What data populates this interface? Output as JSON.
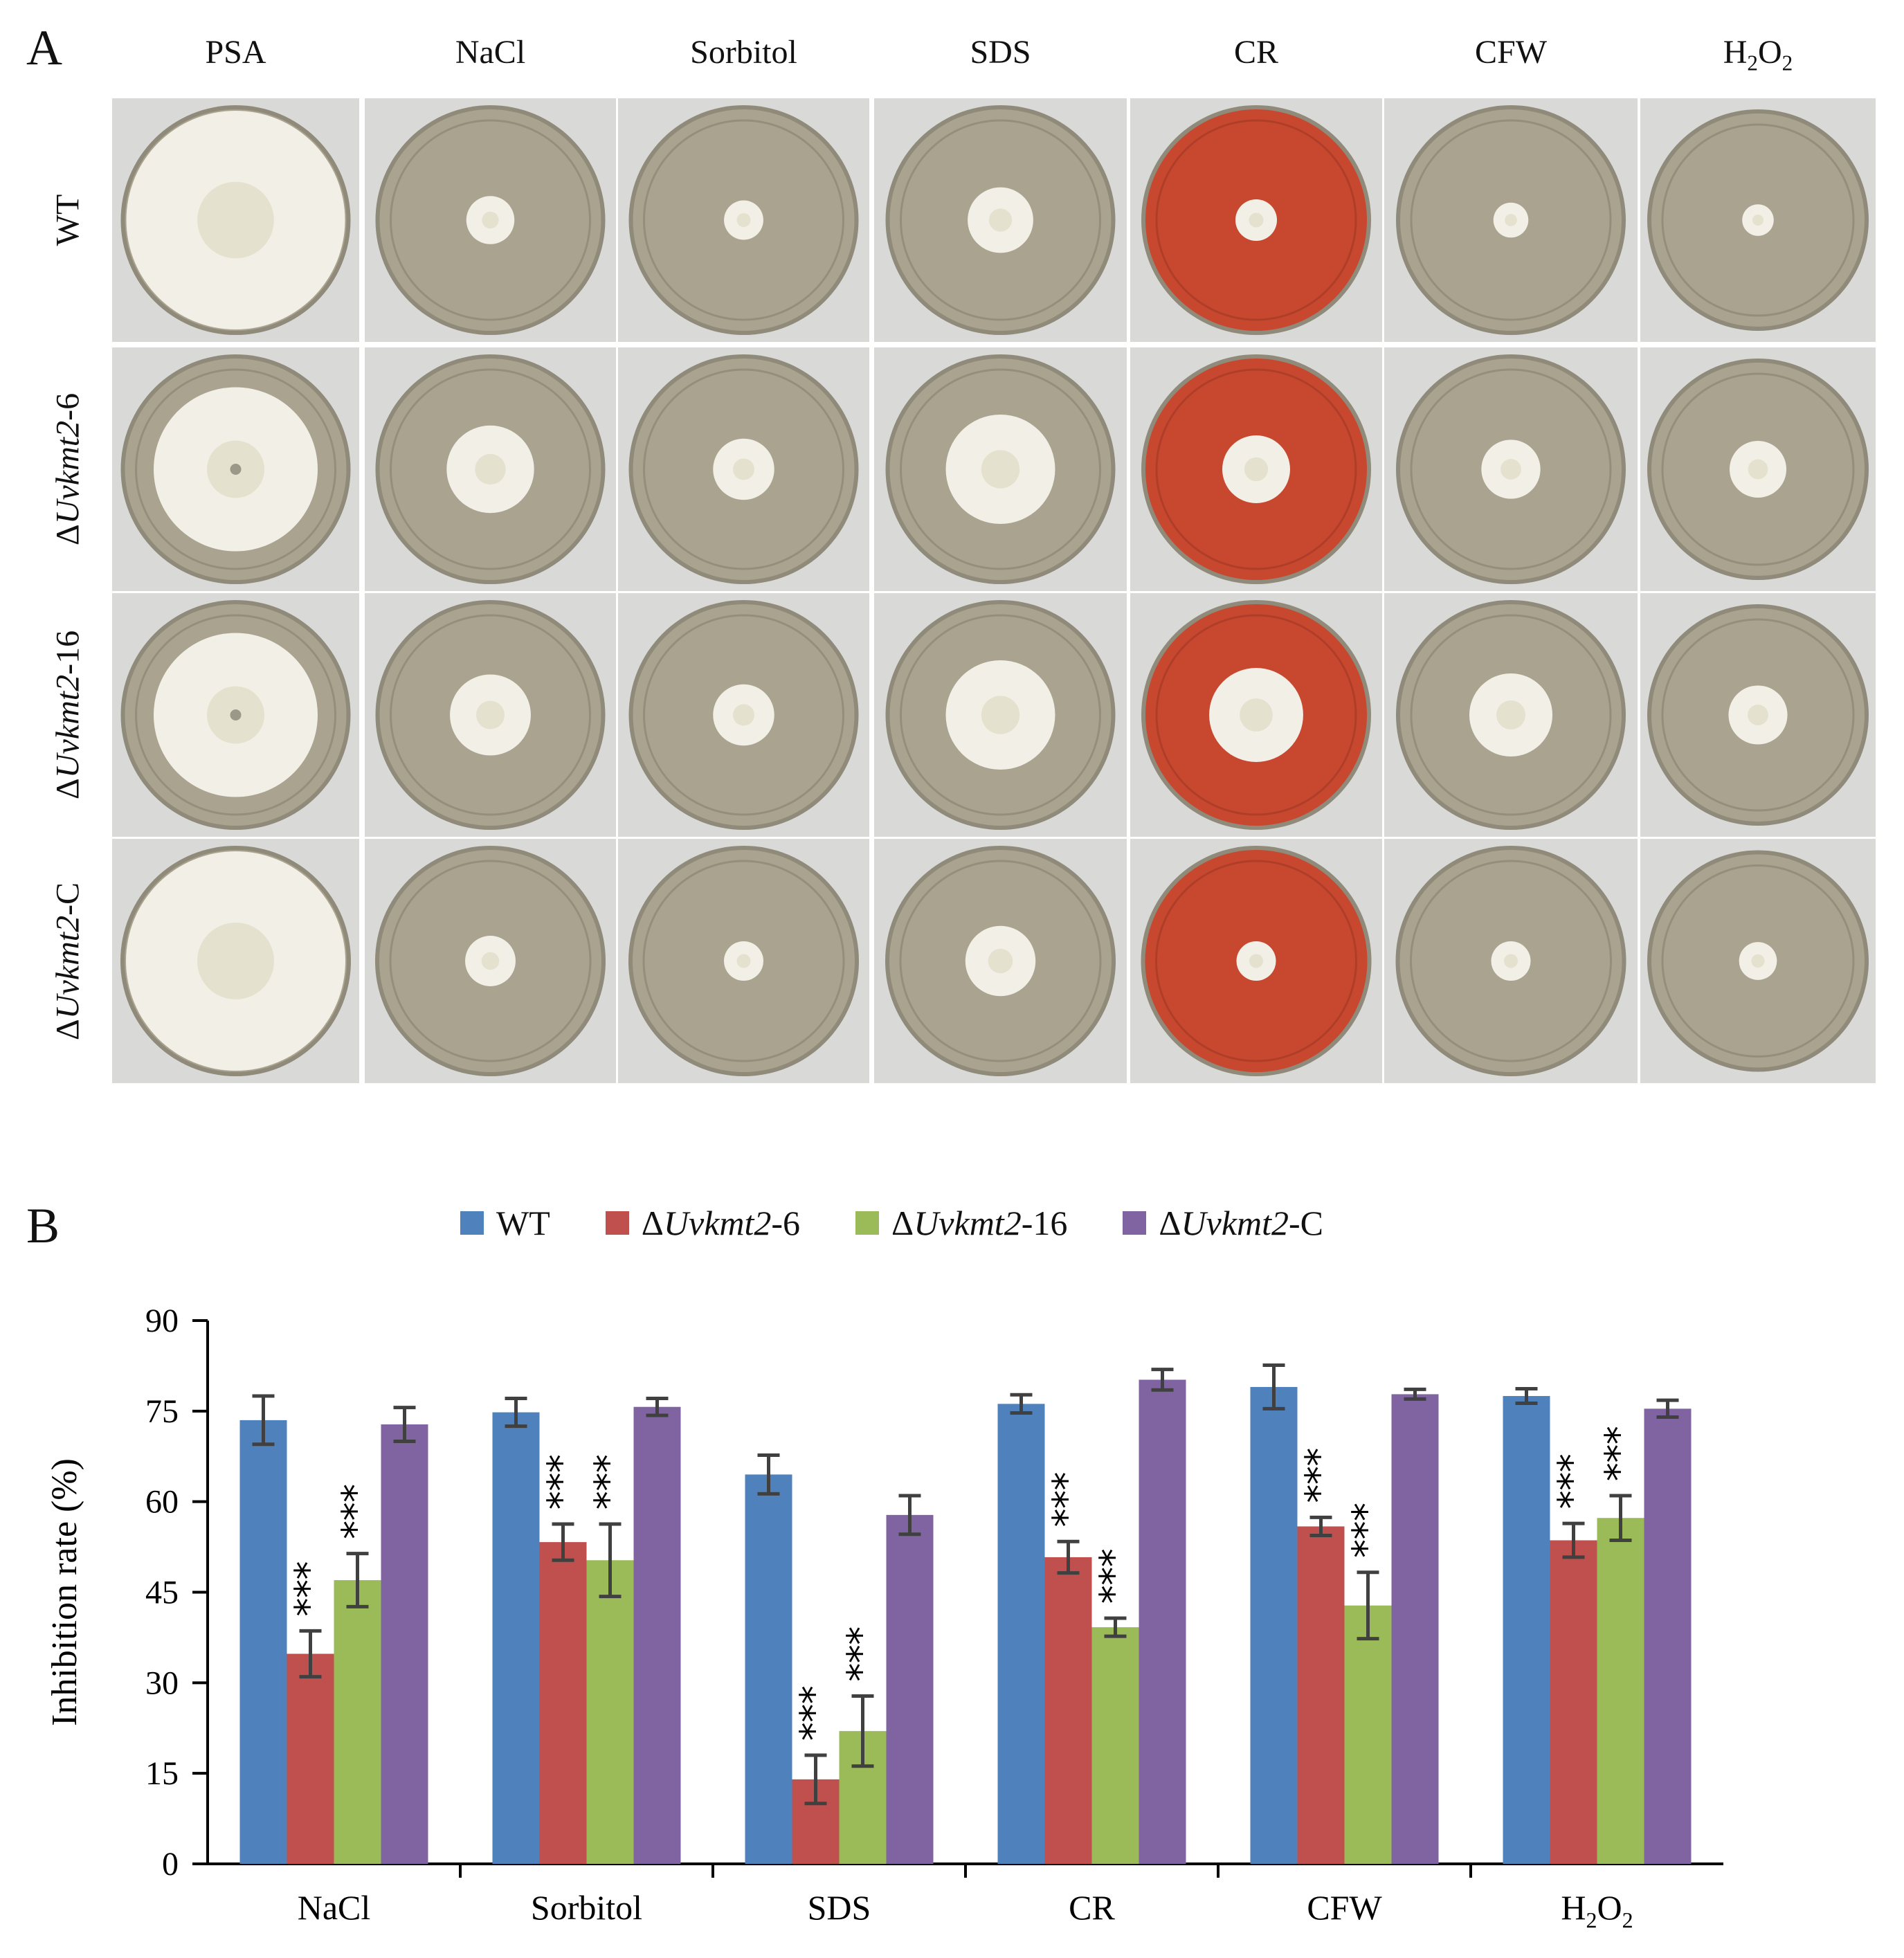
{
  "panel_a": {
    "letter": "A",
    "columns": [
      "PSA",
      "NaCl",
      "Sorbitol",
      "SDS",
      "CR",
      "CFW",
      "H2O2"
    ],
    "rows": [
      {
        "prefix": "",
        "italic": "",
        "suffix": "WT"
      },
      {
        "prefix": "Δ",
        "italic": "Uvkmt2",
        "suffix": "-6"
      },
      {
        "prefix": "Δ",
        "italic": "Uvkmt2",
        "suffix": "-16"
      },
      {
        "prefix": "Δ",
        "italic": "Uvkmt2",
        "suffix": "-C"
      }
    ],
    "colony_diameter_fraction": [
      [
        1.0,
        0.22,
        0.18,
        0.3,
        0.19,
        0.16,
        0.15
      ],
      [
        0.75,
        0.4,
        0.28,
        0.5,
        0.31,
        0.27,
        0.27
      ],
      [
        0.75,
        0.37,
        0.28,
        0.5,
        0.43,
        0.38,
        0.28
      ],
      [
        1.0,
        0.23,
        0.18,
        0.32,
        0.18,
        0.18,
        0.18
      ]
    ],
    "colors": {
      "agar": "#a9a38f",
      "congo_red_agar": "#c8472f",
      "background": "#d9dad7",
      "colony": "#f1efe6"
    }
  },
  "panel_b": {
    "letter": "B",
    "legend": [
      {
        "prefix": "",
        "italic": "",
        "suffix": "WT",
        "color": "#4f81bd"
      },
      {
        "prefix": "Δ",
        "italic": "Uvkmt2",
        "suffix": "-6",
        "color": "#c0504d"
      },
      {
        "prefix": "Δ",
        "italic": "Uvkmt2",
        "suffix": "-16",
        "color": "#9bbb59"
      },
      {
        "prefix": "Δ",
        "italic": "Uvkmt2",
        "suffix": "-C",
        "color": "#8064a2"
      }
    ]
  },
  "chart_data": {
    "type": "bar",
    "categories": [
      "NaCl",
      "Sorbitol",
      "SDS",
      "CR",
      "CFW",
      "H2O2"
    ],
    "ylabel": "Inhibition rate (%)",
    "xlabel": "",
    "ylim": [
      0,
      90
    ],
    "yticks": [
      0,
      15,
      30,
      45,
      60,
      75,
      90
    ],
    "series": [
      {
        "name": "WT",
        "color": "#4f81bd",
        "values": [
          73.5,
          74.8,
          64.5,
          76.2,
          79.0,
          77.5
        ],
        "errors": [
          4.0,
          2.3,
          3.2,
          1.5,
          3.6,
          1.2
        ]
      },
      {
        "name": "ΔUvkmt2-6",
        "color": "#c0504d",
        "values": [
          34.8,
          53.3,
          14.0,
          50.8,
          55.9,
          53.6
        ],
        "errors": [
          3.8,
          3.0,
          4.0,
          2.6,
          1.5,
          2.8
        ]
      },
      {
        "name": "ΔUvkmt2-16",
        "color": "#9bbb59",
        "values": [
          47.0,
          50.3,
          22.0,
          39.2,
          42.8,
          57.3
        ],
        "errors": [
          4.4,
          6.0,
          5.8,
          1.5,
          5.5,
          3.7
        ]
      },
      {
        "name": "ΔUvkmt2-C",
        "color": "#8064a2",
        "values": [
          72.8,
          75.7,
          57.8,
          80.2,
          77.8,
          75.4
        ],
        "errors": [
          2.8,
          1.4,
          3.2,
          1.7,
          0.8,
          1.4
        ]
      }
    ],
    "significance_label": "***",
    "significance_series": [
      "ΔUvkmt2-6",
      "ΔUvkmt2-16"
    ],
    "grid": false,
    "legend_position": "top"
  }
}
